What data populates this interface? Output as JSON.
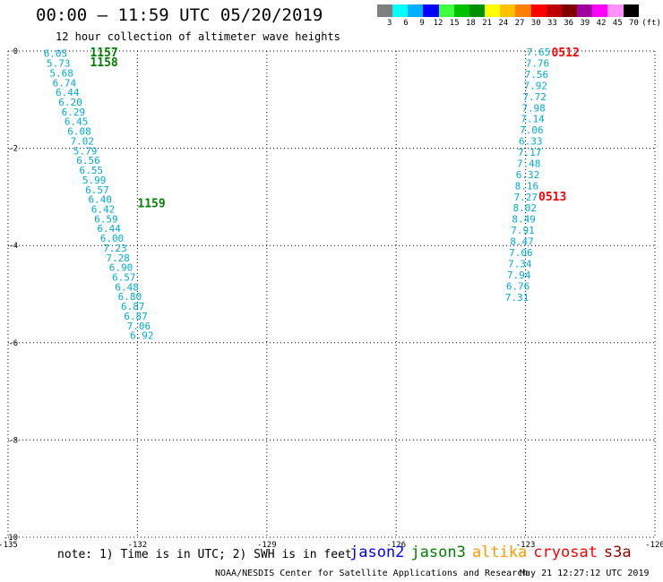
{
  "header": {
    "title": "00:00 — 11:59 UTC 05/20/2019",
    "subtitle": "12 hour collection of altimeter wave heights"
  },
  "colorbar": {
    "colors": [
      "#808080",
      "#00ffff",
      "#00b0ff",
      "#0000ff",
      "#40ff40",
      "#00c000",
      "#009000",
      "#ffff00",
      "#ffc000",
      "#ff8000",
      "#ff0000",
      "#c00000",
      "#800000",
      "#a000a0",
      "#ff00ff",
      "#ff90ff",
      "#000000"
    ],
    "labels": [
      "3",
      "6",
      "9",
      "12",
      "15",
      "18",
      "21",
      "24",
      "27",
      "30",
      "33",
      "36",
      "39",
      "42",
      "45",
      "70",
      "(ft)"
    ]
  },
  "map": {
    "x_ticks": [
      "-135",
      "-132",
      "-129",
      "-126",
      "-123",
      "-120"
    ],
    "y_ticks": [
      "0",
      "-2",
      "-4",
      "-6",
      "-8",
      "-10"
    ],
    "lon_range": [
      -135,
      -120
    ],
    "lat_range": [
      -10,
      0
    ],
    "grid": "dotted"
  },
  "tracks": {
    "west": {
      "color": "#00aadd",
      "values": [
        "6.05",
        "5.73",
        "5.68",
        "6.74",
        "6.44",
        "6.20",
        "6.29",
        "6.45",
        "6.08",
        "7.02",
        "5.79",
        "6.56",
        "6.55",
        "5.99",
        "6.57",
        "6.40",
        "6.42",
        "6.59",
        "6.44",
        "6.00",
        "7.23",
        "7.28",
        "6.90",
        "6.57",
        "6.48",
        "6.80",
        "6.87",
        "6.87",
        "7.06",
        "6.92"
      ],
      "lon_start": -133.9,
      "lon_end": -131.9,
      "lat_start": -0.05,
      "lat_end": -5.85,
      "time_labels": [
        {
          "text": "1157",
          "lon": -133.1,
          "lat": -0.02
        },
        {
          "text": "1158",
          "lon": -133.1,
          "lat": -0.22
        },
        {
          "text": "1159",
          "lon": -132.0,
          "lat": -3.12
        }
      ],
      "time_color": "#008000"
    },
    "east": {
      "color": "#00aadd",
      "values": [
        "7.65",
        "7.76",
        "7.56",
        "7.92",
        "7.72",
        "7.98",
        "7.14",
        "7.06",
        "6.33",
        "7.17",
        "7.48",
        "6.32",
        "8.16",
        "7.27",
        "8.02",
        "8.49",
        "7.91",
        "8.47",
        "7.06",
        "7.34",
        "7.94",
        "6.76",
        "7.31"
      ],
      "lon_start": -122.7,
      "lon_end": -123.2,
      "lat_start": -0.02,
      "lat_end": -5.06,
      "time_labels": [
        {
          "text": "0512",
          "lon": -122.4,
          "lat": -0.02
        },
        {
          "text": "0513",
          "lon": -122.7,
          "lat": -2.98
        }
      ],
      "time_color": "#ff0000"
    }
  },
  "footer": {
    "note": "note: 1) Time is in UTC; 2) SWH is in feet",
    "legend": [
      {
        "label": "jason2",
        "color": "#0000ff"
      },
      {
        "label": "jason3",
        "color": "#008000"
      },
      {
        "label": "altika",
        "color": "#ff9900"
      },
      {
        "label": "cryosat",
        "color": "#ff0000"
      },
      {
        "label": "s3a",
        "color": "#990000"
      }
    ],
    "credit": "NOAA/NESDIS Center for Satellite Applications and Research",
    "timestamp": "May 21 12:27:12 UTC 2019"
  }
}
